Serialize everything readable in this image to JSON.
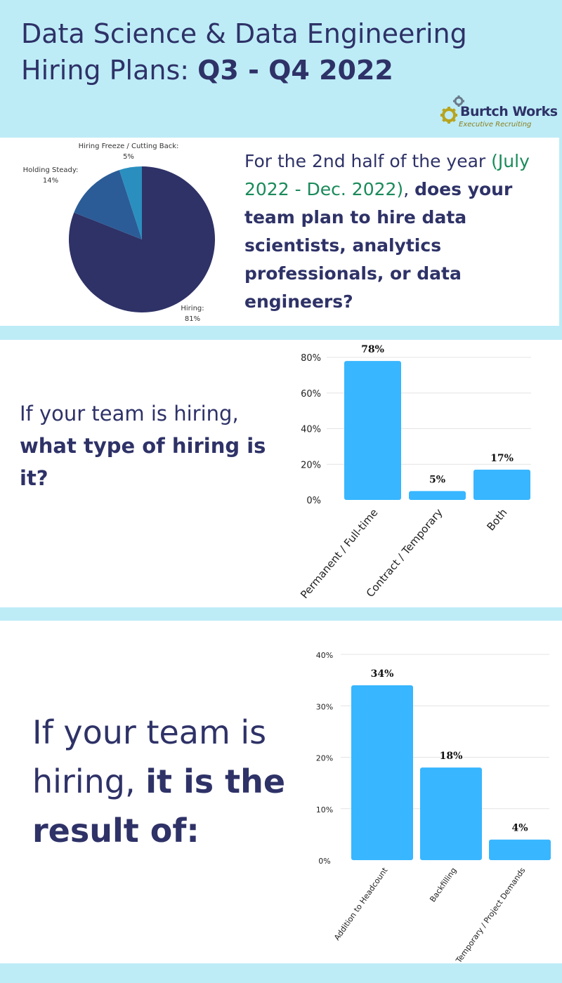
{
  "header": {
    "title_line1": "Data Science & Data Engineering",
    "title_line2_prefix": "Hiring Plans: ",
    "title_line2_bold": "Q3 - Q4 2022",
    "logo_name": "Burtch Works",
    "logo_tagline": "Executive Recruiting"
  },
  "section1": {
    "question_part1": "For the 2nd half of the year ",
    "question_highlight": "(July 2022 - Dec. 2022)",
    "question_part2": ", ",
    "question_bold": "does your team plan to hire data scientists, analytics professionals, or data engineers?"
  },
  "section2": {
    "question_plain": "If your team is hiring, ",
    "question_bold": "what type of hiring is it?"
  },
  "section3": {
    "question_plain": "If your team is hiring, ",
    "question_bold": "it is the result of:"
  },
  "colors": {
    "pie": [
      "#2e3267",
      "#2b5c97",
      "#2a8fbf"
    ],
    "bar": "#38b6ff",
    "text": "#2e3267",
    "highlight": "#1a8a5a",
    "background": "#bdecf7"
  },
  "chart_data": [
    {
      "type": "pie",
      "labels": [
        "Hiring:",
        "Holding Steady:",
        "Hiring Freeze / Cutting Back:"
      ],
      "values": [
        81,
        14,
        5
      ],
      "value_labels": [
        "81%",
        "14%",
        "5%"
      ]
    },
    {
      "type": "bar",
      "categories": [
        "Permanent / Full-time",
        "Contract / Temporary",
        "Both"
      ],
      "values": [
        78,
        5,
        17
      ],
      "data_labels": [
        "78%",
        "5%",
        "17%"
      ],
      "yticks": [
        "0%",
        "20%",
        "40%",
        "60%",
        "80%"
      ],
      "ylim": [
        0,
        80
      ],
      "grid": true
    },
    {
      "type": "bar",
      "categories": [
        "Addition to Headcount",
        "Backfilling",
        "Temporary / Project Demands"
      ],
      "values": [
        34,
        18,
        4
      ],
      "data_labels": [
        "34%",
        "18%",
        "4%"
      ],
      "yticks": [
        "0%",
        "10%",
        "20%",
        "30%",
        "40%"
      ],
      "ylim": [
        0,
        40
      ],
      "grid": true
    }
  ]
}
